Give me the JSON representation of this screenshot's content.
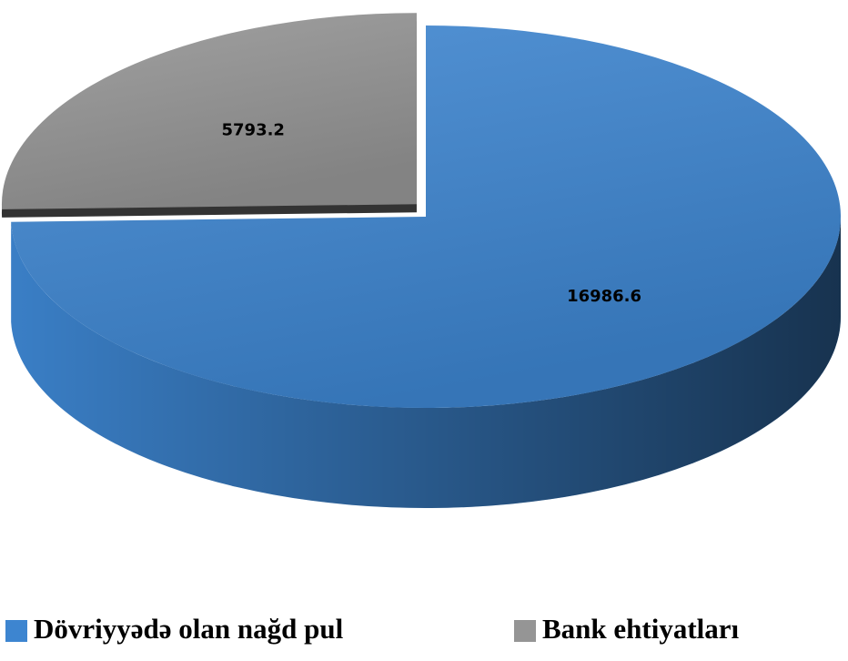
{
  "chart_data": {
    "type": "pie3d",
    "categories": [
      "Dövriyyədə olan nağd pul",
      "Bank ehtiyatları"
    ],
    "values": [
      16986.6,
      5793.2
    ],
    "colors": [
      "#3d85d0",
      "#959595"
    ],
    "legend": "bottom"
  }
}
